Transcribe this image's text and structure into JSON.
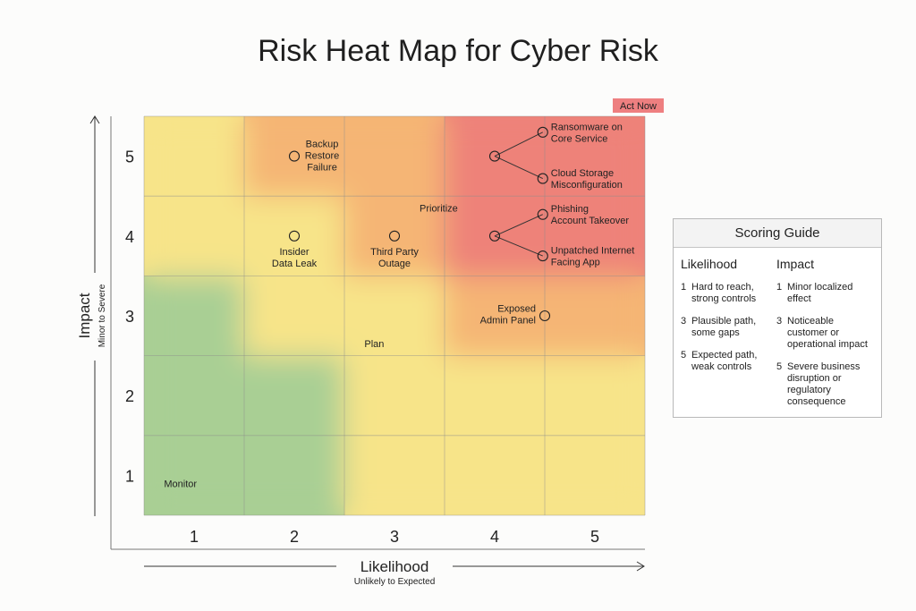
{
  "chart_data": {
    "type": "heatmap",
    "title": "Risk Heat Map for Cyber Risk",
    "xlabel": "Likelihood",
    "xsublabel": "Unlikely to Expected",
    "ylabel": "Impact",
    "ysublabel": "Minor to Severe",
    "x_categories": [
      "1",
      "2",
      "3",
      "4",
      "5"
    ],
    "y_categories": [
      "1",
      "2",
      "3",
      "4",
      "5"
    ],
    "xlim": [
      0.5,
      5.5
    ],
    "ylim": [
      0.5,
      5.5
    ],
    "grid": true,
    "zone_colors": {
      "monitor": "#a9cf94",
      "plan": "#f7e489",
      "prioritize": "#f5b575",
      "act": "#ee8279"
    },
    "cells": [
      [
        "monitor",
        "monitor",
        "plan",
        "plan",
        "plan"
      ],
      [
        "monitor",
        "monitor",
        "plan",
        "plan",
        "plan"
      ],
      [
        "monitor",
        "plan",
        "plan",
        "prioritize",
        "prioritize"
      ],
      [
        "plan",
        "plan",
        "prioritize",
        "act",
        "act"
      ],
      [
        "plan",
        "prioritize",
        "prioritize",
        "act",
        "act"
      ]
    ],
    "zone_labels": [
      {
        "text": "Monitor",
        "x": 0.7,
        "y": 0.9
      },
      {
        "text": "Plan",
        "x": 2.7,
        "y": 2.65
      },
      {
        "text": "Prioritize",
        "x": 3.25,
        "y": 4.35
      },
      {
        "text": "Act Now",
        "x": 5.25,
        "y": 5.65,
        "badge": true
      }
    ],
    "points": [
      {
        "label": [
          "Backup",
          "Restore",
          "Failure"
        ],
        "x": 2.0,
        "y": 5.0,
        "label_side": "right-up"
      },
      {
        "label": [
          "Insider",
          "Data Leak"
        ],
        "x": 2.0,
        "y": 4.0,
        "label_side": "below"
      },
      {
        "label": [
          "Third Party",
          "Outage"
        ],
        "x": 3.0,
        "y": 4.0,
        "label_side": "below"
      },
      {
        "label": [
          "Ransomware on",
          "Core Service"
        ],
        "x": 4.48,
        "y": 5.3,
        "label_side": "right"
      },
      {
        "label": [
          "Cloud Storage",
          "Misconfiguration"
        ],
        "x": 4.48,
        "y": 4.72,
        "label_side": "right"
      },
      {
        "label": [
          "Phishing",
          "Account Takeover"
        ],
        "x": 4.48,
        "y": 4.27,
        "label_side": "right"
      },
      {
        "label": [
          "Unpatched Internet",
          "Facing App"
        ],
        "x": 4.48,
        "y": 3.75,
        "label_side": "right"
      },
      {
        "label": [
          "Exposed",
          "Admin Panel"
        ],
        "x": 4.5,
        "y": 3.0,
        "label_side": "left"
      }
    ],
    "hubs": [
      {
        "x": 4.0,
        "y": 5.0,
        "targets": [
          3,
          4
        ]
      },
      {
        "x": 4.0,
        "y": 4.0,
        "targets": [
          5,
          6
        ]
      }
    ]
  },
  "guide": {
    "title": "Scoring Guide",
    "columns": [
      {
        "heading": "Likelihood",
        "items": [
          {
            "level": "1",
            "text": "Hard to reach, strong controls"
          },
          {
            "level": "3",
            "text": "Plausible path, some gaps"
          },
          {
            "level": "5",
            "text": "Expected path, weak controls"
          }
        ]
      },
      {
        "heading": "Impact",
        "items": [
          {
            "level": "1",
            "text": "Minor localized effect"
          },
          {
            "level": "3",
            "text": "Noticeable customer or operational impact"
          },
          {
            "level": "5",
            "text": "Severe business disruption or regulatory consequence"
          }
        ]
      }
    ]
  }
}
